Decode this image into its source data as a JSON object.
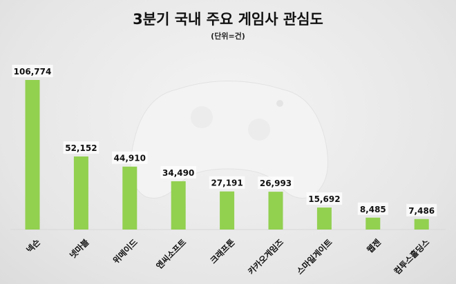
{
  "chart_data": {
    "type": "bar",
    "title": "3분기 국내 주요 게임사 관심도",
    "subtitle": "(단위=건)",
    "categories": [
      "넥슨",
      "넷마블",
      "위메이드",
      "엔씨소프트",
      "크래프톤",
      "카카오게임즈",
      "스마일게이트",
      "웹젠",
      "컴투스홀딩스"
    ],
    "values": [
      106774,
      52152,
      44910,
      34490,
      27191,
      26993,
      15692,
      8485,
      7486
    ],
    "data_labels": [
      "106,774",
      "52,152",
      "44,910",
      "34,490",
      "27,191",
      "26,993",
      "15,692",
      "8,485",
      "7,486"
    ],
    "xlabel": "",
    "ylabel": "",
    "grid": false,
    "bar_color": "#92d050"
  }
}
